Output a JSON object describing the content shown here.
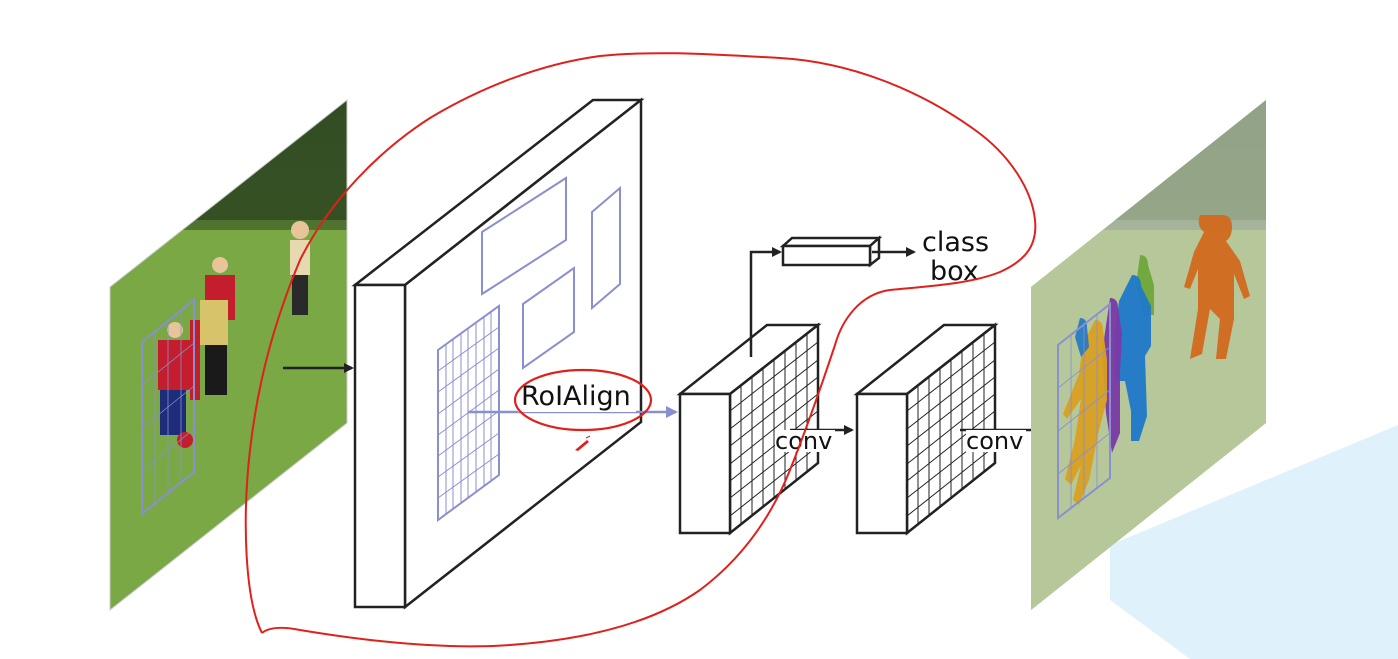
{
  "labels": {
    "roialign": "RoIAlign",
    "class": "class",
    "box": "box",
    "conv_1": "conv",
    "conv_2": "conv"
  },
  "colors": {
    "roi_blue": "#8a8fd0",
    "annotation_red": "#e0201a",
    "outline": "#222222",
    "light_blue_shape": "#dff2fb",
    "grass_green": "#6f9a3e",
    "mask_orange": "#d2691e",
    "mask_yellow": "#d8a021",
    "mask_blue": "#1f78c8",
    "mask_purple": "#7a3aa6",
    "mask_green": "#6ea83a"
  },
  "icons": {
    "input_image": "soccer-photo-icon",
    "output_image": "segmented-soccer-photo-icon",
    "pen_cursor": "pen-cursor-icon"
  }
}
